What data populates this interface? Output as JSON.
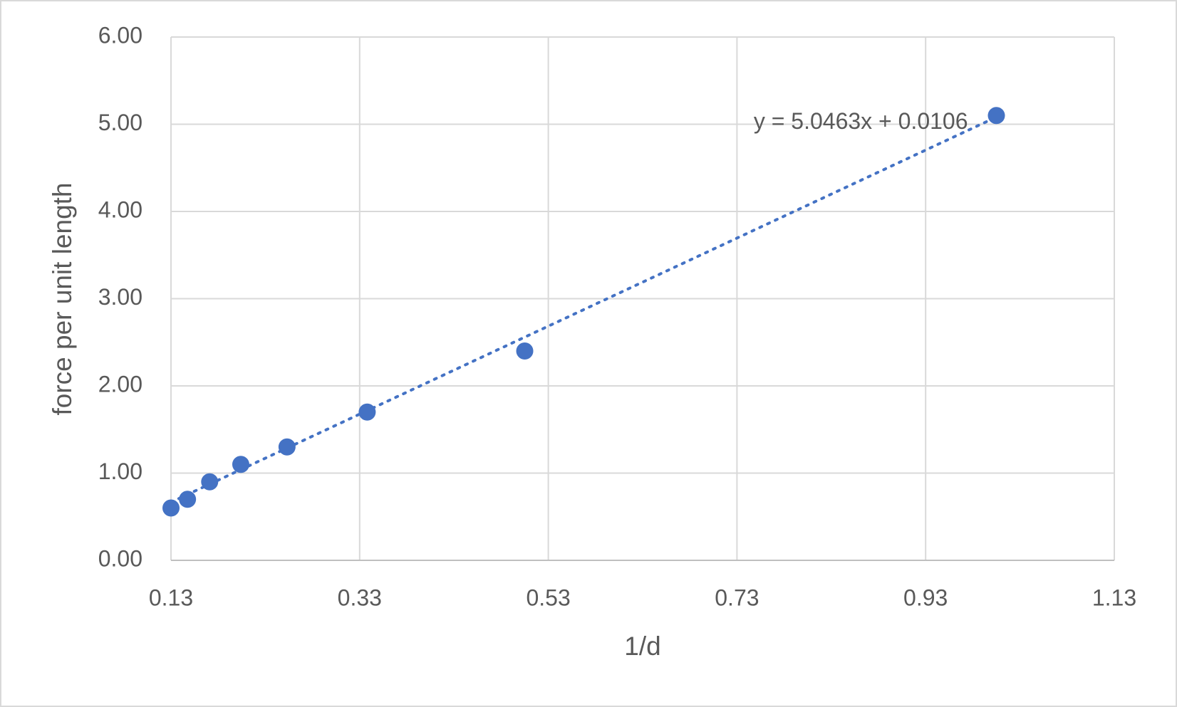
{
  "chart_data": {
    "type": "scatter",
    "x_label": "1/d",
    "y_label": "force per unit length",
    "series": [
      {
        "color": "#4472c4",
        "x": [
          0.13,
          0.1475,
          0.171,
          0.204,
          0.253,
          0.338,
          0.505,
          1.005
        ],
        "values": [
          0.6,
          0.7,
          0.9,
          1.1,
          1.3,
          1.7,
          2.4,
          5.1
        ]
      }
    ],
    "trendline": {
      "slope": 5.0463,
      "intercept": 0.0106,
      "label": "y = 5.0463x + 0.0106",
      "color": "#4472c4",
      "style": "dotted"
    },
    "xlim": [
      0.13,
      1.13
    ],
    "xticks": [
      0.13,
      0.33,
      0.53,
      0.73,
      0.93,
      1.13
    ],
    "ylim": [
      0,
      6
    ],
    "yticks": [
      {
        "value": 0,
        "label": "0.00"
      },
      {
        "value": 1,
        "label": "1.00"
      },
      {
        "value": 2,
        "label": "2.00"
      },
      {
        "value": 3,
        "label": "3.00"
      },
      {
        "value": 4,
        "label": "4.00"
      },
      {
        "value": 5,
        "label": "5.00"
      },
      {
        "value": 6,
        "label": "6.00"
      }
    ],
    "grid": true
  }
}
